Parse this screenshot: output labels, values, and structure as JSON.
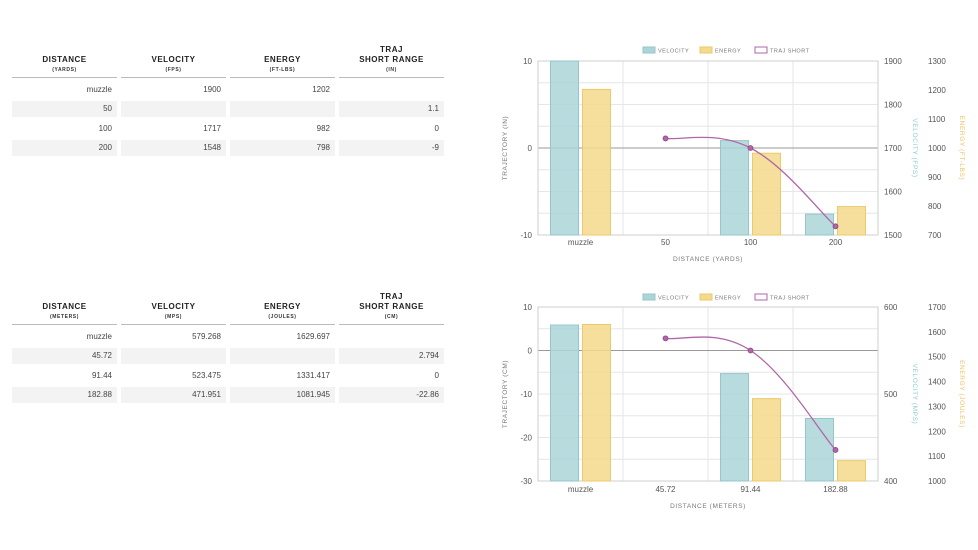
{
  "tables": [
    {
      "headers": [
        {
          "title": "DISTANCE",
          "unit": "(YARDS)"
        },
        {
          "title": "VELOCITY",
          "unit": "(FPS)"
        },
        {
          "title": "ENERGY",
          "unit": "(FT-LBS)"
        },
        {
          "title": "TRAJ\nSHORT RANGE",
          "unit": "(IN)"
        }
      ],
      "rows": [
        [
          "muzzle",
          "1900",
          "1202",
          ""
        ],
        [
          "50",
          "",
          "",
          "1.1"
        ],
        [
          "100",
          "1717",
          "982",
          "0"
        ],
        [
          "200",
          "1548",
          "798",
          "-9"
        ]
      ]
    },
    {
      "headers": [
        {
          "title": "DISTANCE",
          "unit": "(METERS)"
        },
        {
          "title": "VELOCITY",
          "unit": "(MPS)"
        },
        {
          "title": "ENERGY",
          "unit": "(JOULES)"
        },
        {
          "title": "TRAJ\nSHORT RANGE",
          "unit": "(CM)"
        }
      ],
      "rows": [
        [
          "muzzle",
          "579.268",
          "1629.697",
          ""
        ],
        [
          "45.72",
          "",
          "",
          "2.794"
        ],
        [
          "91.44",
          "523.475",
          "1331.417",
          "0"
        ],
        [
          "182.88",
          "471.951",
          "1081.945",
          "-22.86"
        ]
      ]
    }
  ],
  "chart_data": [
    {
      "type": "bar",
      "categories": [
        "muzzle",
        "50",
        "100",
        "200"
      ],
      "series": [
        {
          "name": "VELOCITY",
          "axis": "y1",
          "color": "#acd5d8",
          "values": [
            1900,
            null,
            1717,
            1548
          ]
        },
        {
          "name": "ENERGY",
          "axis": "y2",
          "color": "#f5d98c",
          "values": [
            1202,
            null,
            982,
            798
          ]
        },
        {
          "name": "TRAJ SHORT",
          "axis": "y0",
          "type": "line",
          "color": "#b066a8",
          "values": [
            null,
            1.1,
            0,
            -9
          ]
        }
      ],
      "xlabel": "DISTANCE (YARDS)",
      "y0": {
        "label": "TRAJECTORY (IN)",
        "range": [
          -10,
          10
        ],
        "ticks": [
          "10",
          "0",
          "-10"
        ],
        "tick_values": [
          10,
          0,
          -10
        ]
      },
      "y1": {
        "label": "VELOCITY (FPS)",
        "range": [
          1500,
          1900
        ],
        "ticks": [
          "1900",
          "1800",
          "1700",
          "1600",
          "1500"
        ],
        "tick_values": [
          1900,
          1800,
          1700,
          1600,
          1500
        ]
      },
      "y2": {
        "label": "ENERGY (FT-LBS)",
        "range": [
          700,
          1300
        ],
        "ticks": [
          "1300",
          "1200",
          "1100",
          "1000",
          "900",
          "800",
          "700"
        ],
        "tick_values": [
          1300,
          1200,
          1100,
          1000,
          900,
          800,
          700
        ]
      },
      "legend": [
        "VELOCITY",
        "ENERGY",
        "TRAJ SHORT"
      ],
      "legend_position": "top"
    },
    {
      "type": "bar",
      "categories": [
        "muzzle",
        "45.72",
        "91.44",
        "182.88"
      ],
      "series": [
        {
          "name": "VELOCITY",
          "axis": "y1",
          "color": "#acd5d8",
          "values": [
            579.268,
            null,
            523.475,
            471.951
          ]
        },
        {
          "name": "ENERGY",
          "axis": "y2",
          "color": "#f5d98c",
          "values": [
            1629.697,
            null,
            1331.417,
            1081.945
          ]
        },
        {
          "name": "TRAJ SHORT",
          "axis": "y0",
          "type": "line",
          "color": "#b066a8",
          "values": [
            null,
            2.794,
            0,
            -22.86
          ]
        }
      ],
      "xlabel": "DISTANCE (METERS)",
      "y0": {
        "label": "TRAJECTORY (CM)",
        "range": [
          -30,
          10
        ],
        "ticks": [
          "10",
          "0",
          "-10",
          "-20",
          "-30"
        ],
        "tick_values": [
          10,
          0,
          -10,
          -20,
          -30
        ]
      },
      "y1": {
        "label": "VELOCITY (MPS)",
        "range": [
          400,
          600
        ],
        "ticks": [
          "600",
          "500",
          "400"
        ],
        "tick_values": [
          600,
          500,
          400
        ]
      },
      "y2": {
        "label": "ENERGY (JOULES)",
        "range": [
          1000,
          1700
        ],
        "ticks": [
          "1700",
          "1600",
          "1500",
          "1400",
          "1300",
          "1200",
          "1100",
          "1000"
        ],
        "tick_values": [
          1700,
          1600,
          1500,
          1400,
          1300,
          1200,
          1100,
          1000
        ]
      },
      "legend": [
        "VELOCITY",
        "ENERGY",
        "TRAJ SHORT"
      ],
      "legend_position": "top"
    }
  ]
}
